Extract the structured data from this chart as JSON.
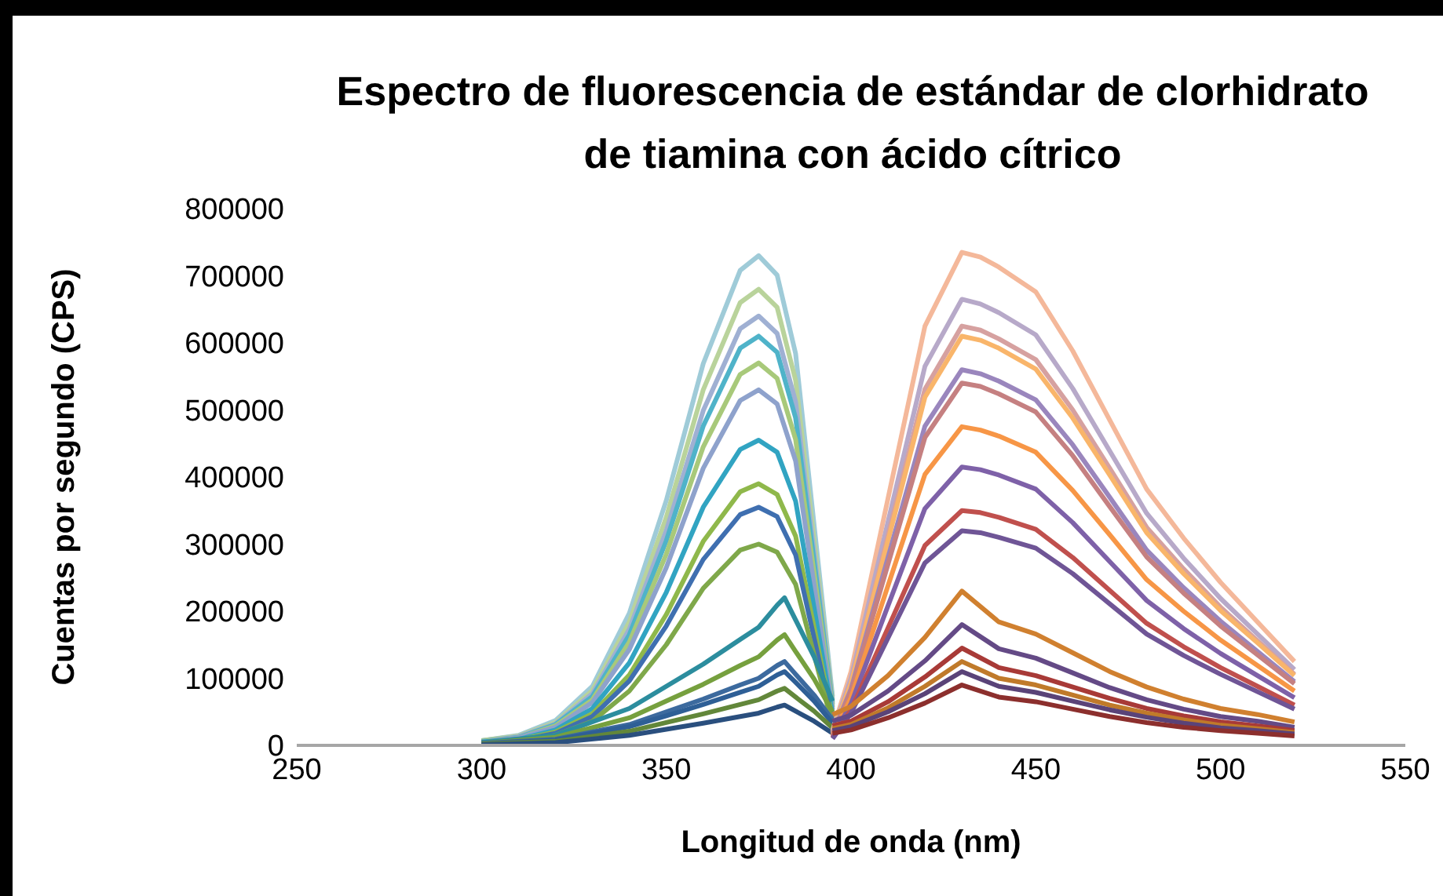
{
  "chart_data": {
    "type": "line",
    "title": "Espectro de fluorescencia de estándar de clorhidrato de tiamina con ácido cítrico",
    "xlabel": "Longitud de onda (nm)",
    "ylabel": "Cuentas por segundo (CPS)",
    "xlim": [
      250,
      550
    ],
    "xticks": [
      250,
      300,
      350,
      400,
      450,
      500,
      550
    ],
    "ylim": [
      0,
      800000
    ],
    "yticks": [
      0,
      100000,
      200000,
      300000,
      400000,
      500000,
      600000,
      700000,
      800000
    ],
    "grid": false,
    "legend": false,
    "marker": "none",
    "line_style": "solid",
    "series": [
      {
        "color": "#9fcbd8",
        "x": [
          300,
          310,
          320,
          330,
          340,
          350,
          360,
          370,
          375,
          380,
          385,
          390,
          395
        ],
        "values": [
          7000,
          15000,
          37000,
          88000,
          197000,
          365000,
          569000,
          708000,
          730000,
          701000,
          584000,
          329000,
          73000
        ]
      },
      {
        "color": "#b9d39b",
        "x": [
          300,
          310,
          320,
          330,
          340,
          350,
          360,
          370,
          375,
          380,
          385,
          390,
          395
        ],
        "values": [
          7000,
          14000,
          34000,
          82000,
          184000,
          340000,
          530000,
          660000,
          680000,
          653000,
          544000,
          306000,
          68000
        ]
      },
      {
        "color": "#9fb0d3",
        "x": [
          300,
          310,
          320,
          330,
          340,
          350,
          360,
          370,
          375,
          380,
          385,
          390,
          395
        ],
        "values": [
          6000,
          13000,
          32000,
          77000,
          173000,
          320000,
          499000,
          621000,
          640000,
          614000,
          512000,
          288000,
          64000
        ]
      },
      {
        "color": "#4fb3c9",
        "x": [
          300,
          310,
          320,
          330,
          340,
          350,
          360,
          370,
          375,
          380,
          385,
          390,
          395
        ],
        "values": [
          6000,
          12000,
          31000,
          73000,
          165000,
          305000,
          476000,
          592000,
          610000,
          586000,
          488000,
          275000,
          61000
        ]
      },
      {
        "color": "#a8c97a",
        "x": [
          300,
          310,
          320,
          330,
          340,
          350,
          360,
          370,
          375,
          380,
          385,
          390,
          395
        ],
        "values": [
          6000,
          11000,
          29000,
          68000,
          154000,
          285000,
          445000,
          553000,
          570000,
          547000,
          456000,
          257000,
          57000
        ]
      },
      {
        "color": "#8ea2cc",
        "x": [
          300,
          310,
          320,
          330,
          340,
          350,
          360,
          370,
          375,
          380,
          385,
          390,
          395
        ],
        "values": [
          5000,
          11000,
          27000,
          64000,
          143000,
          265000,
          413000,
          514000,
          530000,
          509000,
          424000,
          239000,
          53000
        ]
      },
      {
        "color": "#31a4c2",
        "x": [
          300,
          310,
          320,
          330,
          340,
          350,
          360,
          370,
          375,
          380,
          385,
          390,
          395
        ],
        "values": [
          5000,
          9000,
          23000,
          55000,
          123000,
          228000,
          355000,
          441000,
          455000,
          437000,
          364000,
          205000,
          46000
        ]
      },
      {
        "color": "#8fb84b",
        "x": [
          300,
          310,
          320,
          330,
          340,
          350,
          360,
          370,
          375,
          380,
          385,
          390,
          395
        ],
        "values": [
          4000,
          8000,
          20000,
          47000,
          105000,
          195000,
          304000,
          378000,
          390000,
          374000,
          312000,
          176000,
          39000
        ]
      },
      {
        "color": "#3f6fb0",
        "x": [
          300,
          310,
          320,
          330,
          340,
          350,
          360,
          370,
          375,
          380,
          385,
          390,
          395
        ],
        "values": [
          4000,
          7000,
          18000,
          43000,
          96000,
          178000,
          277000,
          344000,
          355000,
          341000,
          284000,
          160000,
          36000
        ]
      },
      {
        "color": "#7fa84a",
        "x": [
          300,
          310,
          320,
          330,
          340,
          350,
          360,
          370,
          375,
          380,
          385,
          390,
          395
        ],
        "values": [
          3000,
          6000,
          15000,
          36000,
          81000,
          150000,
          234000,
          291000,
          300000,
          288000,
          240000,
          135000,
          30000
        ]
      },
      {
        "color": "#2c8d9e",
        "x": [
          300,
          320,
          340,
          350,
          360,
          370,
          375,
          380,
          382,
          385,
          390,
          395
        ],
        "values": [
          4000,
          15000,
          55000,
          88000,
          121000,
          158000,
          176000,
          209000,
          220000,
          187000,
          132000,
          66000
        ]
      },
      {
        "color": "#76a03e",
        "x": [
          300,
          320,
          340,
          350,
          360,
          370,
          375,
          380,
          382,
          385,
          390,
          395
        ],
        "values": [
          3000,
          12000,
          41000,
          66000,
          91000,
          119000,
          132000,
          157000,
          165000,
          140000,
          99000,
          50000
        ]
      },
      {
        "color": "#3c6a9e",
        "x": [
          300,
          320,
          340,
          350,
          360,
          370,
          375,
          380,
          382,
          385,
          390,
          395
        ],
        "values": [
          3000,
          9000,
          31000,
          50000,
          69000,
          90000,
          100000,
          119000,
          125000,
          106000,
          75000,
          38000
        ]
      },
      {
        "color": "#2e5f96",
        "x": [
          300,
          320,
          340,
          350,
          360,
          370,
          375,
          380,
          382,
          385,
          390,
          395
        ],
        "values": [
          2000,
          8000,
          28000,
          44000,
          61000,
          79000,
          88000,
          105000,
          110000,
          94000,
          66000,
          33000
        ]
      },
      {
        "color": "#62873a",
        "x": [
          300,
          320,
          340,
          350,
          360,
          370,
          375,
          380,
          382,
          385,
          390,
          395
        ],
        "values": [
          2000,
          6000,
          21000,
          34000,
          47000,
          61000,
          68000,
          81000,
          85000,
          72000,
          51000,
          26000
        ]
      },
      {
        "color": "#2a4f7e",
        "x": [
          300,
          320,
          340,
          350,
          360,
          370,
          375,
          380,
          382,
          385,
          390,
          395
        ],
        "values": [
          1000,
          4000,
          15000,
          24000,
          33000,
          43000,
          48000,
          57000,
          60000,
          51000,
          36000,
          18000
        ]
      },
      {
        "color": "#f4b89a",
        "x": [
          395,
          400,
          410,
          420,
          430,
          435,
          440,
          450,
          460,
          470,
          480,
          490,
          500,
          510,
          520
        ],
        "values": [
          22000,
          110000,
          368000,
          625000,
          735000,
          728000,
          713000,
          676000,
          588000,
          485000,
          382000,
          309000,
          243000,
          184000,
          125000
        ]
      },
      {
        "color": "#b7a9c9",
        "x": [
          395,
          400,
          410,
          420,
          430,
          435,
          440,
          450,
          460,
          470,
          480,
          490,
          500,
          510,
          520
        ],
        "values": [
          20000,
          100000,
          333000,
          565000,
          665000,
          658000,
          645000,
          612000,
          532000,
          439000,
          346000,
          279000,
          219000,
          166000,
          113000
        ]
      },
      {
        "color": "#d6a1a0",
        "x": [
          395,
          400,
          410,
          420,
          430,
          435,
          440,
          450,
          460,
          470,
          480,
          490,
          500,
          510,
          520
        ],
        "values": [
          19000,
          94000,
          313000,
          531000,
          625000,
          619000,
          606000,
          575000,
          500000,
          413000,
          325000,
          263000,
          206000,
          156000,
          106000
        ]
      },
      {
        "color": "#f9b56a",
        "x": [
          395,
          400,
          410,
          420,
          430,
          435,
          440,
          450,
          460,
          470,
          480,
          490,
          500,
          510,
          520
        ],
        "values": [
          18000,
          92000,
          305000,
          519000,
          610000,
          604000,
          592000,
          561000,
          488000,
          403000,
          317000,
          256000,
          201000,
          153000,
          104000
        ]
      },
      {
        "color": "#9a86bd",
        "x": [
          395,
          400,
          410,
          420,
          430,
          435,
          440,
          450,
          460,
          470,
          480,
          490,
          500,
          510,
          520
        ],
        "values": [
          17000,
          84000,
          280000,
          476000,
          560000,
          554000,
          543000,
          515000,
          448000,
          370000,
          291000,
          235000,
          185000,
          140000,
          95000
        ]
      },
      {
        "color": "#c58081",
        "x": [
          395,
          400,
          410,
          420,
          430,
          435,
          440,
          450,
          460,
          470,
          480,
          490,
          500,
          510,
          520
        ],
        "values": [
          16000,
          81000,
          270000,
          459000,
          540000,
          535000,
          524000,
          497000,
          432000,
          356000,
          281000,
          227000,
          178000,
          135000,
          92000
        ]
      },
      {
        "color": "#f79646",
        "x": [
          395,
          400,
          410,
          420,
          430,
          435,
          440,
          450,
          460,
          470,
          480,
          490,
          500,
          510,
          520
        ],
        "values": [
          14000,
          71000,
          238000,
          404000,
          475000,
          470000,
          461000,
          437000,
          380000,
          314000,
          247000,
          200000,
          157000,
          119000,
          81000
        ]
      },
      {
        "color": "#7e61a8",
        "x": [
          395,
          400,
          410,
          420,
          430,
          435,
          440,
          450,
          460,
          470,
          480,
          490,
          500,
          510,
          520
        ],
        "values": [
          12000,
          62000,
          208000,
          353000,
          415000,
          411000,
          403000,
          382000,
          332000,
          274000,
          216000,
          174000,
          137000,
          104000,
          71000
        ]
      },
      {
        "color": "#c0504d",
        "x": [
          395,
          400,
          410,
          420,
          430,
          435,
          440,
          450,
          460,
          470,
          480,
          490,
          500,
          510,
          520
        ],
        "values": [
          11000,
          53000,
          175000,
          298000,
          350000,
          347000,
          340000,
          322000,
          280000,
          231000,
          182000,
          147000,
          116000,
          88000,
          60000
        ]
      },
      {
        "color": "#6f5596",
        "x": [
          395,
          400,
          410,
          420,
          430,
          435,
          440,
          450,
          460,
          470,
          480,
          490,
          500,
          510,
          520
        ],
        "values": [
          10000,
          48000,
          160000,
          272000,
          320000,
          317000,
          310000,
          294000,
          256000,
          211000,
          166000,
          134000,
          106000,
          80000,
          54000
        ]
      },
      {
        "color": "#d0802f",
        "x": [
          395,
          400,
          410,
          420,
          430,
          440,
          450,
          460,
          470,
          480,
          490,
          500,
          510,
          520
        ],
        "values": [
          46000,
          58000,
          104000,
          161000,
          230000,
          184000,
          166000,
          138000,
          110000,
          87000,
          69000,
          55000,
          46000,
          35000
        ]
      },
      {
        "color": "#644a86",
        "x": [
          395,
          400,
          410,
          420,
          430,
          440,
          450,
          460,
          470,
          480,
          490,
          500,
          510,
          520
        ],
        "values": [
          36000,
          45000,
          81000,
          126000,
          180000,
          144000,
          130000,
          108000,
          86000,
          68000,
          54000,
          43000,
          36000,
          27000
        ]
      },
      {
        "color": "#a83a37",
        "x": [
          395,
          400,
          410,
          420,
          430,
          440,
          450,
          460,
          470,
          480,
          490,
          500,
          510,
          520
        ],
        "values": [
          29000,
          36000,
          65000,
          102000,
          145000,
          116000,
          104000,
          87000,
          70000,
          55000,
          44000,
          35000,
          29000,
          22000
        ]
      },
      {
        "color": "#c07a2a",
        "x": [
          395,
          400,
          410,
          420,
          430,
          440,
          450,
          460,
          470,
          480,
          490,
          500,
          510,
          520
        ],
        "values": [
          25000,
          31000,
          56000,
          88000,
          125000,
          100000,
          90000,
          75000,
          60000,
          48000,
          38000,
          30000,
          25000,
          19000
        ]
      },
      {
        "color": "#5a4378",
        "x": [
          395,
          400,
          410,
          420,
          430,
          440,
          450,
          460,
          470,
          480,
          490,
          500,
          510,
          520
        ],
        "values": [
          22000,
          28000,
          50000,
          77000,
          110000,
          88000,
          79000,
          66000,
          53000,
          42000,
          33000,
          26000,
          22000,
          17000
        ]
      },
      {
        "color": "#8c2f2d",
        "x": [
          395,
          400,
          410,
          420,
          430,
          440,
          450,
          460,
          470,
          480,
          490,
          500,
          510,
          520
        ],
        "values": [
          18000,
          23000,
          41000,
          63000,
          90000,
          72000,
          65000,
          54000,
          43000,
          34000,
          27000,
          22000,
          18000,
          14000
        ]
      }
    ]
  }
}
